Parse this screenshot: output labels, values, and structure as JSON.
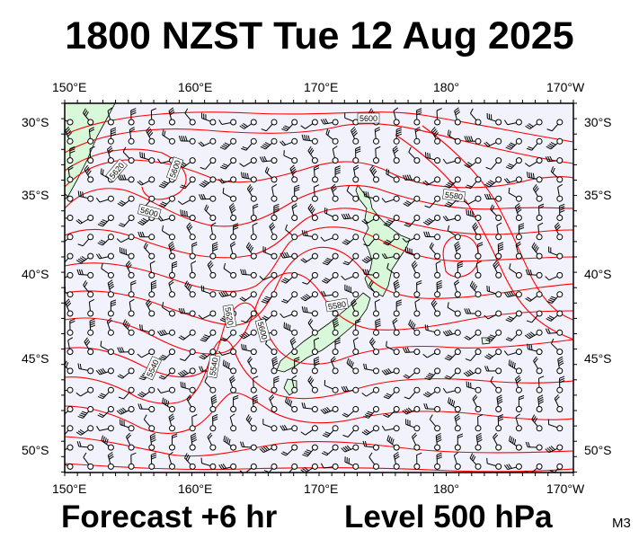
{
  "title": "1800 NZST Tue 12 Aug 2025",
  "footer": {
    "forecast": "Forecast +6 hr",
    "level": "Level 500 hPa",
    "code": "M3"
  },
  "axes": {
    "lon_labels": [
      "150°E",
      "160°E",
      "170°E",
      "180°",
      "170°W"
    ],
    "lat_labels": [
      "30°S",
      "35°S",
      "40°S",
      "45°S",
      "50°S"
    ]
  },
  "contour_labels": [
    "5600",
    "5620",
    "5600",
    "5600",
    "5580",
    "5580",
    "5620",
    "5600",
    "5540",
    "5540"
  ],
  "colors": {
    "ocean": "#f2f2fc",
    "land": "#d9f7d9",
    "contour": "#ff0000",
    "frame": "#000000"
  },
  "map": {
    "lon_range": [
      150,
      190
    ],
    "lat_range": [
      -52,
      -29
    ],
    "symbols": "wind-barbs"
  }
}
